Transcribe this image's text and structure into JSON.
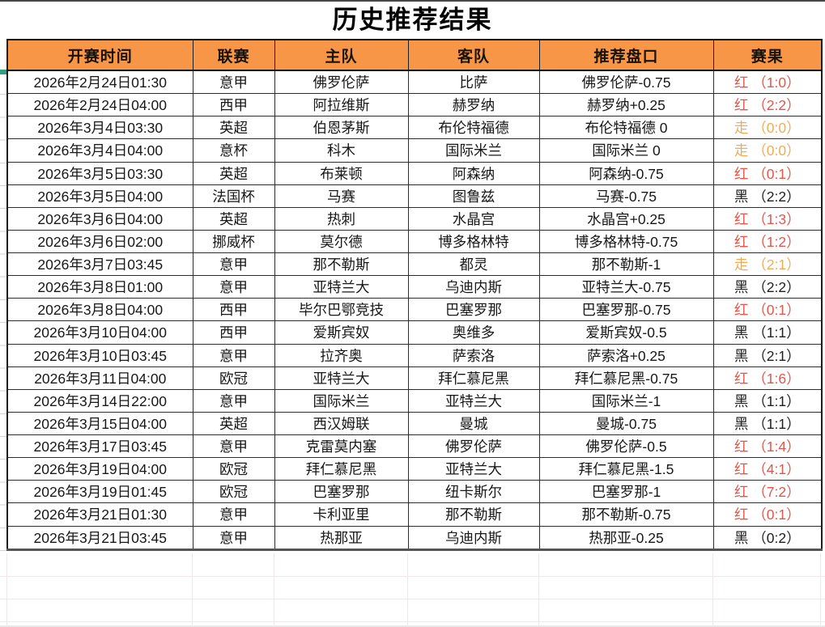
{
  "title": "历史推荐结果",
  "table": {
    "headers": [
      "开赛时间",
      "联赛",
      "主队",
      "客队",
      "推荐盘口",
      "赛果"
    ],
    "rows": [
      {
        "time": "2026年2月24日01:30",
        "league": "意甲",
        "home": "佛罗伦萨",
        "away": "比萨",
        "handicap": "佛罗伦萨-0.75",
        "result_text": "红 （1:0）",
        "result_status": "红",
        "result_score": "1:0",
        "result_color": "red"
      },
      {
        "time": "2026年2月24日04:00",
        "league": "西甲",
        "home": "阿拉维斯",
        "away": "赫罗纳",
        "handicap": "赫罗纳+0.25",
        "result_text": "红 （2:2）",
        "result_status": "红",
        "result_score": "2:2",
        "result_color": "red"
      },
      {
        "time": "2026年3月4日03:30",
        "league": "英超",
        "home": "伯恩茅斯",
        "away": "布伦特福德",
        "handicap": "布伦特福德 0",
        "result_text": "走 （0:0）",
        "result_status": "走",
        "result_score": "0:0",
        "result_color": "push"
      },
      {
        "time": "2026年3月4日04:00",
        "league": "意杯",
        "home": "科木",
        "away": "国际米兰",
        "handicap": "国际米兰 0",
        "result_text": "走 （0:0）",
        "result_status": "走",
        "result_score": "0:0",
        "result_color": "push"
      },
      {
        "time": "2026年3月5日03:30",
        "league": "英超",
        "home": "布莱顿",
        "away": "阿森纳",
        "handicap": "阿森纳-0.75",
        "result_text": "红 （0:1）",
        "result_status": "红",
        "result_score": "0:1",
        "result_color": "red"
      },
      {
        "time": "2026年3月5日04:00",
        "league": "法国杯",
        "home": "马赛",
        "away": "图鲁兹",
        "handicap": "马赛-0.75",
        "result_text": "黑 （2:2）",
        "result_status": "黑",
        "result_score": "2:2",
        "result_color": "black"
      },
      {
        "time": "2026年3月6日04:00",
        "league": "英超",
        "home": "热刺",
        "away": "水晶宫",
        "handicap": "水晶宫+0.25",
        "result_text": "红 （1:3）",
        "result_status": "红",
        "result_score": "1:3",
        "result_color": "red"
      },
      {
        "time": "2026年3月6日02:00",
        "league": "挪威杯",
        "home": "莫尔德",
        "away": "博多格林特",
        "handicap": "博多格林特-0.75",
        "result_text": "红 （1:2）",
        "result_status": "红",
        "result_score": "1:2",
        "result_color": "red"
      },
      {
        "time": "2026年3月7日03:45",
        "league": "意甲",
        "home": "那不勒斯",
        "away": "都灵",
        "handicap": "那不勒斯-1",
        "result_text": "走 （2:1）",
        "result_status": "走",
        "result_score": "2:1",
        "result_color": "push"
      },
      {
        "time": "2026年3月8日01:00",
        "league": "意甲",
        "home": "亚特兰大",
        "away": "乌迪内斯",
        "handicap": "亚特兰大-0.75",
        "result_text": "黑 （2:2）",
        "result_status": "黑",
        "result_score": "2:2",
        "result_color": "black"
      },
      {
        "time": "2026年3月8日04:00",
        "league": "西甲",
        "home": "毕尔巴鄂竞技",
        "away": "巴塞罗那",
        "handicap": "巴塞罗那-0.75",
        "result_text": "红 （0:1）",
        "result_status": "红",
        "result_score": "0:1",
        "result_color": "red"
      },
      {
        "time": "2026年3月10日04:00",
        "league": "西甲",
        "home": "爱斯宾奴",
        "away": "奥维多",
        "handicap": "爱斯宾奴-0.5",
        "result_text": "黑 （1:1）",
        "result_status": "黑",
        "result_score": "1:1",
        "result_color": "black"
      },
      {
        "time": "2026年3月10日03:45",
        "league": "意甲",
        "home": "拉齐奥",
        "away": "萨索洛",
        "handicap": "萨索洛+0.25",
        "result_text": "黑 （2:1）",
        "result_status": "黑",
        "result_score": "2:1",
        "result_color": "black"
      },
      {
        "time": "2026年3月11日04:00",
        "league": "欧冠",
        "home": "亚特兰大",
        "away": "拜仁慕尼黑",
        "handicap": "拜仁慕尼黑-0.75",
        "result_text": "红 （1:6）",
        "result_status": "红",
        "result_score": "1:6",
        "result_color": "red"
      },
      {
        "time": "2026年3月14日22:00",
        "league": "意甲",
        "home": "国际米兰",
        "away": "亚特兰大",
        "handicap": "国际米兰-1",
        "result_text": "黑 （1:1）",
        "result_status": "黑",
        "result_score": "1:1",
        "result_color": "black"
      },
      {
        "time": "2026年3月15日04:00",
        "league": "英超",
        "home": "西汉姆联",
        "away": "曼城",
        "handicap": "曼城-0.75",
        "result_text": "黑 （1:1）",
        "result_status": "黑",
        "result_score": "1:1",
        "result_color": "black"
      },
      {
        "time": "2026年3月17日03:45",
        "league": "意甲",
        "home": "克雷莫内塞",
        "away": "佛罗伦萨",
        "handicap": "佛罗伦萨-0.5",
        "result_text": "红 （1:4）",
        "result_status": "红",
        "result_score": "1:4",
        "result_color": "red"
      },
      {
        "time": "2026年3月19日04:00",
        "league": "欧冠",
        "home": "拜仁慕尼黑",
        "away": "亚特兰大",
        "handicap": "拜仁慕尼黑-1.5",
        "result_text": "红 （4:1）",
        "result_status": "红",
        "result_score": "4:1",
        "result_color": "red"
      },
      {
        "time": "2026年3月19日01:45",
        "league": "欧冠",
        "home": "巴塞罗那",
        "away": "纽卡斯尔",
        "handicap": "巴塞罗那-1",
        "result_text": "红 （7:2）",
        "result_status": "红",
        "result_score": "7:2",
        "result_color": "red"
      },
      {
        "time": "2026年3月21日01:30",
        "league": "意甲",
        "home": "卡利亚里",
        "away": "那不勒斯",
        "handicap": "那不勒斯-0.75",
        "result_text": "红 （0:1）",
        "result_status": "红",
        "result_score": "0:1",
        "result_color": "red"
      },
      {
        "time": "2026年3月21日03:45",
        "league": "意甲",
        "home": "热那亚",
        "away": "乌迪内斯",
        "handicap": "热那亚-0.25",
        "result_text": "黑 （0:2）",
        "result_status": "黑",
        "result_score": "0:2",
        "result_color": "black"
      }
    ]
  },
  "colors": {
    "header_bg": "#F79646",
    "result_red": "#E2574C",
    "result_push": "#EFAD53",
    "result_black": "#1F1F1F",
    "selection_green": "#2FA284"
  }
}
